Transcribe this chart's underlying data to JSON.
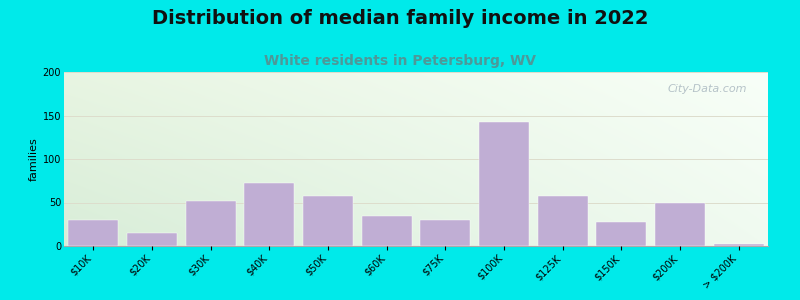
{
  "title": "Distribution of median family income in 2022",
  "subtitle": "White residents in Petersburg, WV",
  "ylabel": "families",
  "categories": [
    "$10K",
    "$20K",
    "$30K",
    "$40K",
    "$50K",
    "$60K",
    "$75K",
    "$100K",
    "$125K",
    "$150K",
    "$200K",
    "> $200K"
  ],
  "values": [
    30,
    15,
    52,
    72,
    58,
    35,
    30,
    142,
    58,
    28,
    50,
    2
  ],
  "bar_color": "#c0aed4",
  "bar_edge_color": "#ffffff",
  "background_color": "#00eaea",
  "title_fontsize": 14,
  "title_color": "#111111",
  "subtitle_fontsize": 10,
  "subtitle_color": "#4d9999",
  "ylabel_fontsize": 8,
  "tick_fontsize": 7,
  "ylim": [
    0,
    200
  ],
  "yticks": [
    0,
    50,
    100,
    150,
    200
  ],
  "grid_color": "#ddddcc",
  "watermark": "City-Data.com",
  "watermark_color": "#aab8c0",
  "plot_bg_color_tl": "#e8f5e2",
  "plot_bg_color_tr": "#f5faf5",
  "plot_bg_color_bl": "#d8edd8",
  "plot_bg_color_br": "#eef5ee"
}
